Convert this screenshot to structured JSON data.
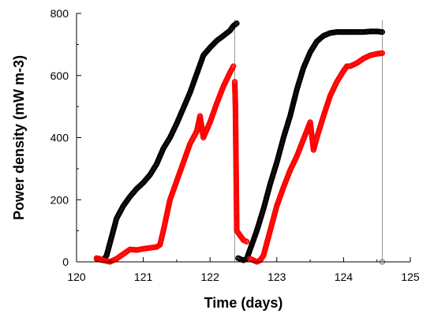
{
  "chart_data": {
    "type": "scatter",
    "title": "",
    "xlabel": "Time (days)",
    "ylabel": "Power density (mW m-3)",
    "xlim": [
      120,
      125
    ],
    "ylim": [
      0,
      800
    ],
    "xticks": [
      120,
      121,
      122,
      123,
      124,
      125
    ],
    "yticks": [
      0,
      200,
      400,
      600,
      800
    ],
    "grid": false,
    "legend": "none",
    "series": [
      {
        "color": "#000000",
        "segments": [
          [
            [
              120.3,
              10
            ],
            [
              120.4,
              5
            ],
            [
              120.45,
              20
            ],
            [
              120.5,
              60
            ],
            [
              120.55,
              100
            ],
            [
              120.6,
              140
            ],
            [
              120.7,
              180
            ],
            [
              120.8,
              210
            ],
            [
              120.9,
              235
            ],
            [
              121.0,
              255
            ],
            [
              121.1,
              280
            ],
            [
              121.2,
              315
            ],
            [
              121.3,
              365
            ],
            [
              121.4,
              400
            ],
            [
              121.5,
              445
            ],
            [
              121.6,
              495
            ],
            [
              121.7,
              545
            ],
            [
              121.8,
              605
            ],
            [
              121.9,
              665
            ],
            [
              122.0,
              690
            ],
            [
              122.1,
              712
            ],
            [
              122.2,
              728
            ],
            [
              122.3,
              745
            ],
            [
              122.35,
              760
            ],
            [
              122.4,
              768
            ]
          ],
          [
            [
              122.42,
              12
            ],
            [
              122.5,
              5
            ],
            [
              122.55,
              10
            ],
            [
              122.6,
              40
            ],
            [
              122.7,
              100
            ],
            [
              122.8,
              170
            ],
            [
              122.9,
              250
            ],
            [
              123.0,
              320
            ],
            [
              123.1,
              400
            ],
            [
              123.2,
              470
            ],
            [
              123.3,
              555
            ],
            [
              123.4,
              625
            ],
            [
              123.5,
              675
            ],
            [
              123.6,
              710
            ],
            [
              123.7,
              728
            ],
            [
              123.8,
              737
            ],
            [
              123.9,
              740
            ],
            [
              124.0,
              740
            ],
            [
              124.1,
              740
            ],
            [
              124.2,
              740
            ],
            [
              124.3,
              740
            ],
            [
              124.4,
              742
            ],
            [
              124.5,
              742
            ],
            [
              124.58,
              740
            ]
          ]
        ]
      },
      {
        "color": "#ff0000",
        "segments": [
          [
            [
              120.3,
              12
            ],
            [
              120.35,
              10
            ],
            [
              120.4,
              5
            ],
            [
              120.5,
              0
            ],
            [
              120.6,
              10
            ],
            [
              120.7,
              25
            ],
            [
              120.8,
              40
            ],
            [
              120.9,
              38
            ],
            [
              121.0,
              42
            ],
            [
              121.1,
              45
            ],
            [
              121.2,
              48
            ],
            [
              121.25,
              55
            ],
            [
              121.3,
              100
            ],
            [
              121.4,
              200
            ],
            [
              121.5,
              260
            ],
            [
              121.6,
              320
            ],
            [
              121.7,
              380
            ],
            [
              121.8,
              420
            ],
            [
              121.85,
              470
            ],
            [
              121.9,
              400
            ],
            [
              122.0,
              450
            ],
            [
              122.1,
              510
            ],
            [
              122.2,
              565
            ],
            [
              122.3,
              610
            ],
            [
              122.35,
              630
            ]
          ],
          [
            [
              122.37,
              580
            ],
            [
              122.38,
              500
            ],
            [
              122.39,
              300
            ],
            [
              122.4,
              100
            ],
            [
              122.45,
              85
            ],
            [
              122.5,
              70
            ],
            [
              122.55,
              65
            ]
          ],
          [
            [
              122.6,
              10
            ],
            [
              122.7,
              0
            ],
            [
              122.75,
              5
            ],
            [
              122.8,
              20
            ],
            [
              122.9,
              100
            ],
            [
              123.0,
              180
            ],
            [
              123.1,
              240
            ],
            [
              123.2,
              295
            ],
            [
              123.3,
              340
            ],
            [
              123.4,
              395
            ],
            [
              123.5,
              450
            ],
            [
              123.55,
              360
            ],
            [
              123.6,
              400
            ],
            [
              123.7,
              470
            ],
            [
              123.8,
              535
            ],
            [
              123.9,
              580
            ],
            [
              124.0,
              615
            ],
            [
              124.05,
              630
            ],
            [
              124.1,
              630
            ],
            [
              124.2,
              640
            ],
            [
              124.3,
              655
            ],
            [
              124.4,
              665
            ],
            [
              124.5,
              670
            ],
            [
              124.58,
              672
            ]
          ]
        ]
      }
    ],
    "annotations": [
      {
        "type": "vertical-line",
        "x": 122.37,
        "color": "#999999"
      },
      {
        "type": "vertical-line",
        "x": 124.58,
        "color": "#999999"
      },
      {
        "type": "marker",
        "x": 124.58,
        "y": 0,
        "color": "#666666"
      }
    ]
  }
}
